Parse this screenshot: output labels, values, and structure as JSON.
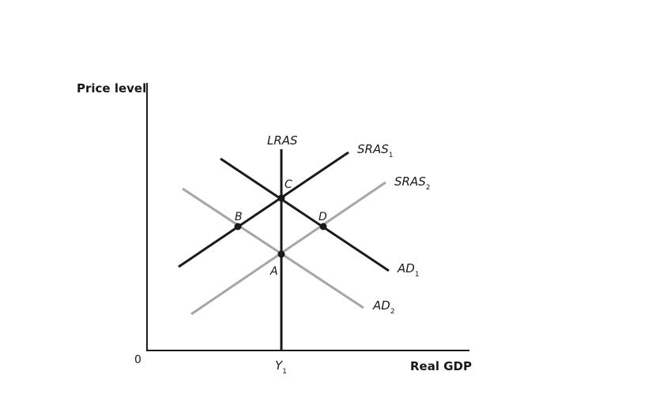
{
  "axes": {
    "y_title": "Price level",
    "x_title": "Real GDP",
    "origin": "0",
    "y1": {
      "main": "Y",
      "sub": "1"
    }
  },
  "curves": {
    "lras": {
      "main": "LRAS",
      "sub": ""
    },
    "sras1": {
      "main": "SRAS",
      "sub": "1"
    },
    "sras2": {
      "main": "SRAS",
      "sub": "2"
    },
    "ad1": {
      "main": "AD",
      "sub": "1"
    },
    "ad2": {
      "main": "AD",
      "sub": "2"
    }
  },
  "points": {
    "a": "A",
    "b": "B",
    "c": "C",
    "d": "D"
  },
  "colors": {
    "dark": "#1a1a1a",
    "light": "#a6a6a6"
  }
}
